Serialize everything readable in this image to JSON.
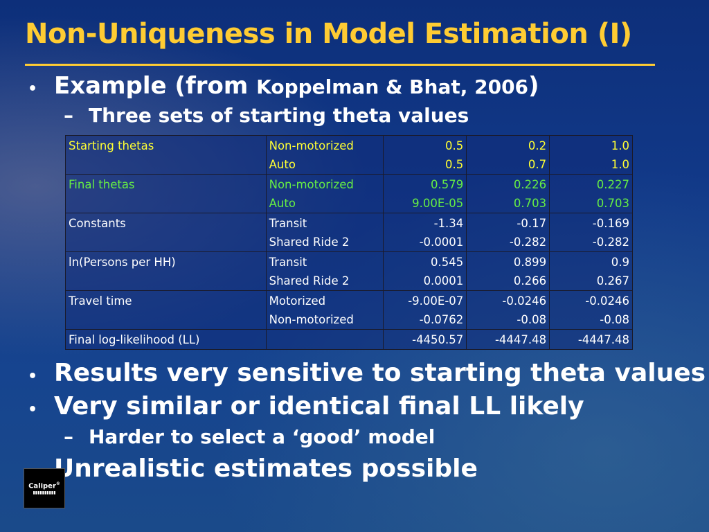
{
  "slide": {
    "title": "Non-Uniqueness in Model Estimation (I)",
    "bullet1_text": "Example (from ",
    "bullet1_ref": "Koppelman & Bhat, 2006",
    "bullet1_close": ")",
    "sub1": "Three sets of starting theta values",
    "bullet2": "Results very sensitive to starting theta values",
    "bullet3": "Very similar or identical final LL likely",
    "sub2": "Harder to select a ‘good’ model",
    "bullet4": "Unrealistic estimates possible",
    "bullet_glyph": "•",
    "dash_glyph": "–"
  },
  "logo": {
    "name": "Caliper",
    "mark": "®"
  },
  "table": {
    "rows": [
      {
        "group": "Starting thetas",
        "sub": "Non-motorized",
        "c1": "0.5",
        "c2": "0.2",
        "c3": "1.0"
      },
      {
        "group": "",
        "sub": "Auto",
        "c1": "0.5",
        "c2": "0.7",
        "c3": "1.0"
      },
      {
        "group": "Final thetas",
        "sub": "Non-motorized",
        "c1": "0.579",
        "c2": "0.226",
        "c3": "0.227"
      },
      {
        "group": "",
        "sub": "Auto",
        "c1": "9.00E-05",
        "c2": "0.703",
        "c3": "0.703"
      },
      {
        "group": "Constants",
        "sub": "Transit",
        "c1": "-1.34",
        "c2": "-0.17",
        "c3": "-0.169"
      },
      {
        "group": "",
        "sub": "Shared Ride 2",
        "c1": "-0.0001",
        "c2": "-0.282",
        "c3": "-0.282"
      },
      {
        "group": "ln(Persons per HH)",
        "sub": "Transit",
        "c1": "0.545",
        "c2": "0.899",
        "c3": "0.9"
      },
      {
        "group": "",
        "sub": "Shared Ride 2",
        "c1": "0.0001",
        "c2": "0.266",
        "c3": "0.267"
      },
      {
        "group": "Travel time",
        "sub": "Motorized",
        "c1": "-9.00E-07",
        "c2": "-0.0246",
        "c3": "-0.0246"
      },
      {
        "group": "",
        "sub": "Non-motorized",
        "c1": "-0.0762",
        "c2": "-0.08",
        "c3": "-0.08"
      },
      {
        "group": "Final log-likelihood (LL)",
        "sub": "",
        "c1": "-4450.57",
        "c2": "-4447.48",
        "c3": "-4447.48"
      }
    ],
    "colors": {
      "starting": "#ffff33",
      "final": "#66ee44",
      "default": "#ffffff"
    }
  }
}
